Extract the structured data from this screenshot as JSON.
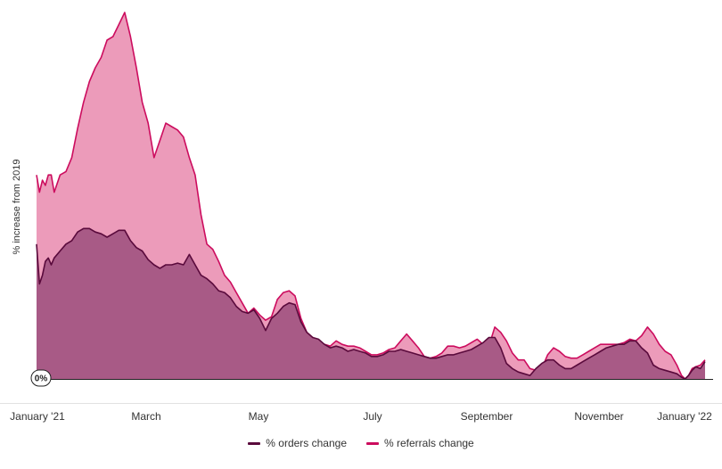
{
  "chart_data": {
    "type": "area",
    "ylabel": "% increase from 2019",
    "zero_label": "0%",
    "x_ticks": [
      "January '21",
      "March",
      "May",
      "July",
      "September",
      "November",
      "January '22"
    ],
    "series": [
      {
        "name": "% orders change",
        "color": "#5a0a3c",
        "fill": "#a85a86",
        "points": [
          [
            0,
            78
          ],
          [
            0.5,
            55
          ],
          [
            1,
            60
          ],
          [
            1.5,
            68
          ],
          [
            2,
            70
          ],
          [
            2.5,
            66
          ],
          [
            3,
            70
          ],
          [
            4,
            74
          ],
          [
            5,
            78
          ],
          [
            6,
            80
          ],
          [
            7,
            85
          ],
          [
            8,
            87
          ],
          [
            9,
            87
          ],
          [
            10,
            85
          ],
          [
            11,
            84
          ],
          [
            12,
            82
          ],
          [
            13,
            84
          ],
          [
            14,
            86
          ],
          [
            15,
            86
          ],
          [
            16,
            80
          ],
          [
            17,
            76
          ],
          [
            18,
            74
          ],
          [
            19,
            69
          ],
          [
            20,
            66
          ],
          [
            21,
            64
          ],
          [
            22,
            66
          ],
          [
            23,
            66
          ],
          [
            24,
            67
          ],
          [
            25,
            66
          ],
          [
            26,
            72
          ],
          [
            27,
            66
          ],
          [
            28,
            60
          ],
          [
            29,
            58
          ],
          [
            30,
            55
          ],
          [
            31,
            51
          ],
          [
            32,
            50
          ],
          [
            33,
            47
          ],
          [
            34,
            42
          ],
          [
            35,
            39
          ],
          [
            36,
            38
          ],
          [
            37,
            40
          ],
          [
            38,
            35
          ],
          [
            39,
            28
          ],
          [
            40,
            35
          ],
          [
            41,
            38
          ],
          [
            42,
            42
          ],
          [
            43,
            44
          ],
          [
            44,
            43
          ],
          [
            45,
            33
          ],
          [
            46,
            27
          ],
          [
            47,
            24
          ],
          [
            48,
            23
          ],
          [
            49,
            20
          ],
          [
            50,
            18
          ],
          [
            51,
            19
          ],
          [
            52,
            18
          ],
          [
            53,
            16
          ],
          [
            54,
            17
          ],
          [
            55,
            16
          ],
          [
            56,
            15
          ],
          [
            57,
            13
          ],
          [
            58,
            13
          ],
          [
            59,
            14
          ],
          [
            60,
            16
          ],
          [
            61,
            16
          ],
          [
            62,
            17
          ],
          [
            63,
            16
          ],
          [
            64,
            15
          ],
          [
            65,
            14
          ],
          [
            66,
            13
          ],
          [
            67,
            12
          ],
          [
            68,
            12
          ],
          [
            69,
            13
          ],
          [
            70,
            14
          ],
          [
            71,
            14
          ],
          [
            72,
            15
          ],
          [
            73,
            16
          ],
          [
            74,
            17
          ],
          [
            75,
            19
          ],
          [
            76,
            21
          ],
          [
            77,
            24
          ],
          [
            78,
            24
          ],
          [
            79,
            18
          ],
          [
            80,
            9
          ],
          [
            81,
            6
          ],
          [
            82,
            4
          ],
          [
            83,
            3
          ],
          [
            84,
            2
          ],
          [
            85,
            6
          ],
          [
            86,
            9
          ],
          [
            87,
            11
          ],
          [
            88,
            11
          ],
          [
            89,
            8
          ],
          [
            90,
            6
          ],
          [
            91,
            6
          ],
          [
            92,
            8
          ],
          [
            93,
            10
          ],
          [
            94,
            12
          ],
          [
            95,
            14
          ],
          [
            96,
            16
          ],
          [
            97,
            18
          ],
          [
            98,
            19
          ],
          [
            99,
            20
          ],
          [
            100,
            20
          ],
          [
            101,
            22
          ],
          [
            102,
            22
          ],
          [
            103,
            18
          ],
          [
            104,
            15
          ],
          [
            105,
            8
          ],
          [
            106,
            6
          ],
          [
            107,
            5
          ],
          [
            108,
            4
          ],
          [
            109,
            3
          ],
          [
            109.8,
            1
          ],
          [
            110.4,
            0
          ],
          [
            111,
            2
          ],
          [
            111.6,
            5
          ],
          [
            112.2,
            7
          ],
          [
            113,
            6
          ],
          [
            113.8,
            10
          ]
        ]
      },
      {
        "name": "% referrals change",
        "color": "#cc0c5e",
        "fill": "#ec9bba",
        "points": [
          [
            0,
            118
          ],
          [
            0.5,
            108
          ],
          [
            1,
            115
          ],
          [
            1.5,
            112
          ],
          [
            2,
            118
          ],
          [
            2.5,
            118
          ],
          [
            3,
            108
          ],
          [
            4,
            118
          ],
          [
            5,
            120
          ],
          [
            6,
            128
          ],
          [
            7,
            145
          ],
          [
            8,
            160
          ],
          [
            9,
            172
          ],
          [
            10,
            180
          ],
          [
            11,
            186
          ],
          [
            12,
            196
          ],
          [
            13,
            198
          ],
          [
            14,
            205
          ],
          [
            15,
            212
          ],
          [
            16,
            198
          ],
          [
            17,
            180
          ],
          [
            18,
            160
          ],
          [
            19,
            148
          ],
          [
            20,
            128
          ],
          [
            21,
            138
          ],
          [
            22,
            148
          ],
          [
            23,
            146
          ],
          [
            24,
            144
          ],
          [
            25,
            140
          ],
          [
            26,
            128
          ],
          [
            27,
            118
          ],
          [
            28,
            95
          ],
          [
            29,
            78
          ],
          [
            30,
            75
          ],
          [
            31,
            68
          ],
          [
            32,
            60
          ],
          [
            33,
            56
          ],
          [
            34,
            50
          ],
          [
            35,
            44
          ],
          [
            36,
            38
          ],
          [
            37,
            41
          ],
          [
            38,
            37
          ],
          [
            39,
            34
          ],
          [
            40,
            36
          ],
          [
            41,
            46
          ],
          [
            42,
            50
          ],
          [
            43,
            51
          ],
          [
            44,
            48
          ],
          [
            45,
            35
          ],
          [
            46,
            27
          ],
          [
            47,
            24
          ],
          [
            48,
            22
          ],
          [
            49,
            20
          ],
          [
            50,
            19
          ],
          [
            51,
            22
          ],
          [
            52,
            20
          ],
          [
            53,
            19
          ],
          [
            54,
            19
          ],
          [
            55,
            18
          ],
          [
            56,
            16
          ],
          [
            57,
            14
          ],
          [
            58,
            14
          ],
          [
            59,
            15
          ],
          [
            60,
            17
          ],
          [
            61,
            18
          ],
          [
            62,
            22
          ],
          [
            63,
            26
          ],
          [
            64,
            22
          ],
          [
            65,
            18
          ],
          [
            66,
            13
          ],
          [
            67,
            12
          ],
          [
            68,
            13
          ],
          [
            69,
            15
          ],
          [
            70,
            19
          ],
          [
            71,
            19
          ],
          [
            72,
            18
          ],
          [
            73,
            19
          ],
          [
            74,
            21
          ],
          [
            75,
            23
          ],
          [
            76,
            20
          ],
          [
            77,
            19
          ],
          [
            78,
            30
          ],
          [
            79,
            27
          ],
          [
            80,
            22
          ],
          [
            81,
            15
          ],
          [
            82,
            11
          ],
          [
            83,
            11
          ],
          [
            84,
            6
          ],
          [
            85,
            5
          ],
          [
            86,
            6
          ],
          [
            87,
            14
          ],
          [
            88,
            18
          ],
          [
            89,
            16
          ],
          [
            90,
            13
          ],
          [
            91,
            12
          ],
          [
            92,
            12
          ],
          [
            93,
            14
          ],
          [
            94,
            16
          ],
          [
            95,
            18
          ],
          [
            96,
            20
          ],
          [
            97,
            20
          ],
          [
            98,
            20
          ],
          [
            99,
            20
          ],
          [
            100,
            21
          ],
          [
            101,
            23
          ],
          [
            102,
            22
          ],
          [
            103,
            25
          ],
          [
            104,
            30
          ],
          [
            105,
            26
          ],
          [
            106,
            20
          ],
          [
            107,
            16
          ],
          [
            108,
            14
          ],
          [
            109,
            8
          ],
          [
            109.8,
            2
          ],
          [
            110.4,
            0
          ],
          [
            111,
            2
          ],
          [
            111.6,
            6
          ],
          [
            112.2,
            7
          ],
          [
            113,
            8
          ],
          [
            113.8,
            11
          ]
        ]
      }
    ]
  }
}
